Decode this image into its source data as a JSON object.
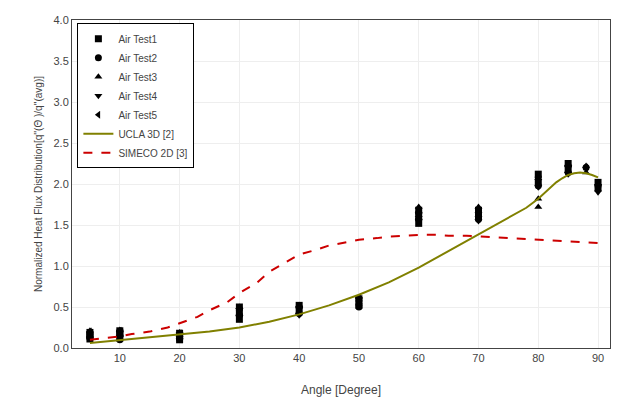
{
  "chart_data": {
    "type": "scatter",
    "xlabel": "Angle [Degree]",
    "ylabel": "Normalized Heat Flux Distribution[q''(Θ )/q''(avg)]",
    "xlim": [
      2,
      92
    ],
    "ylim": [
      0.0,
      4.0
    ],
    "xticks": [
      10,
      20,
      30,
      40,
      50,
      60,
      70,
      80,
      90
    ],
    "yticks": [
      {
        "value": 0,
        "label": "0.0"
      },
      0.5,
      {
        "value": 1,
        "label": "1.0"
      },
      1.5,
      {
        "value": 2,
        "label": "2.0"
      },
      2.5,
      {
        "value": 3,
        "label": "3.0"
      },
      3.5,
      {
        "value": 4,
        "label": "4.0"
      }
    ],
    "grid": true,
    "legend": "upper left",
    "series": [
      {
        "name": "Air Test1",
        "type": "scatter",
        "marker": "square",
        "color": "#000000",
        "x": [
          5,
          5,
          5,
          10,
          10,
          10,
          20,
          20,
          20,
          30,
          30,
          30,
          40,
          40,
          50,
          50,
          60,
          60,
          60,
          70,
          70,
          80,
          80,
          85,
          85,
          90,
          90
        ],
        "values": [
          0.19,
          0.15,
          0.11,
          0.21,
          0.17,
          0.12,
          0.18,
          0.14,
          0.1,
          0.5,
          0.42,
          0.35,
          0.52,
          0.44,
          0.6,
          0.52,
          1.68,
          1.6,
          1.52,
          1.68,
          1.6,
          2.12,
          2.02,
          2.25,
          2.18,
          2.02,
          1.95
        ]
      },
      {
        "name": "Air Test2",
        "type": "scatter",
        "marker": "circle",
        "color": "#000000",
        "x": [
          5,
          5,
          10,
          10,
          10,
          20,
          20,
          30,
          30,
          40,
          40,
          50,
          50,
          60,
          60,
          70,
          70,
          80,
          80,
          85,
          85,
          88,
          90
        ],
        "values": [
          0.17,
          0.12,
          0.2,
          0.15,
          0.1,
          0.16,
          0.11,
          0.48,
          0.4,
          0.5,
          0.42,
          0.58,
          0.5,
          1.65,
          1.57,
          1.65,
          1.57,
          2.08,
          1.98,
          2.22,
          2.14,
          2.2,
          1.98
        ]
      },
      {
        "name": "Air Test3",
        "type": "scatter",
        "marker": "triangle-up",
        "color": "#000000",
        "x": [
          5,
          5,
          10,
          10,
          20,
          20,
          30,
          30,
          40,
          40,
          50,
          50,
          60,
          60,
          70,
          70,
          80,
          80,
          85,
          85,
          88,
          88
        ],
        "values": [
          0.21,
          0.15,
          0.22,
          0.16,
          0.19,
          0.13,
          0.5,
          0.42,
          0.52,
          0.44,
          0.62,
          0.54,
          1.72,
          1.62,
          1.72,
          1.62,
          1.82,
          1.72,
          2.24,
          2.16,
          2.22,
          2.14
        ]
      },
      {
        "name": "Air Test4",
        "type": "scatter",
        "marker": "triangle-down",
        "color": "#000000",
        "x": [
          5,
          5,
          10,
          10,
          20,
          20,
          30,
          30,
          40,
          40,
          50,
          50,
          60,
          60,
          70,
          70,
          80,
          80,
          85,
          85,
          90,
          90
        ],
        "values": [
          0.18,
          0.12,
          0.2,
          0.14,
          0.17,
          0.12,
          0.46,
          0.38,
          0.48,
          0.4,
          0.6,
          0.52,
          1.63,
          1.55,
          1.63,
          1.55,
          2.04,
          1.96,
          2.2,
          2.12,
          1.98,
          1.9
        ]
      },
      {
        "name": "Air Test5",
        "type": "scatter",
        "marker": "triangle-left",
        "color": "#000000",
        "x": [
          5,
          5,
          10,
          10,
          20,
          20,
          30,
          30,
          40,
          40,
          50,
          50,
          60,
          60,
          70,
          70,
          80,
          80,
          85,
          85,
          88
        ],
        "values": [
          0.2,
          0.14,
          0.21,
          0.15,
          0.18,
          0.12,
          0.48,
          0.4,
          0.5,
          0.42,
          0.61,
          0.53,
          1.66,
          1.58,
          1.66,
          1.58,
          2.06,
          1.98,
          2.22,
          2.14,
          2.2
        ]
      },
      {
        "name": "UCLA 3D [2]",
        "type": "line",
        "line_style": "solid",
        "color": "#808000",
        "x": [
          5,
          8,
          10,
          15,
          20,
          25,
          30,
          35,
          40,
          45,
          50,
          55,
          60,
          65,
          70,
          72,
          74,
          76,
          78,
          80,
          81,
          82,
          83,
          84,
          85,
          86,
          87,
          88,
          89,
          90
        ],
        "values": [
          0.06,
          0.08,
          0.1,
          0.13,
          0.16,
          0.2,
          0.25,
          0.32,
          0.41,
          0.52,
          0.65,
          0.8,
          0.98,
          1.18,
          1.38,
          1.46,
          1.54,
          1.62,
          1.71,
          1.82,
          1.89,
          1.96,
          2.02,
          2.07,
          2.11,
          2.13,
          2.14,
          2.13,
          2.11,
          2.08
        ]
      },
      {
        "name": "SIMECO 2D [3]",
        "type": "line",
        "line_style": "dashed",
        "color": "#cc0000",
        "x": [
          5,
          8,
          10,
          12,
          15,
          18,
          20,
          23,
          25,
          28,
          30,
          33,
          35,
          38,
          40,
          43,
          45,
          48,
          50,
          53,
          55,
          58,
          60,
          63,
          65,
          68,
          70,
          73,
          75,
          78,
          80,
          83,
          85,
          88,
          90
        ],
        "values": [
          0.1,
          0.12,
          0.14,
          0.17,
          0.2,
          0.25,
          0.3,
          0.38,
          0.46,
          0.56,
          0.67,
          0.8,
          0.93,
          1.05,
          1.14,
          1.2,
          1.25,
          1.29,
          1.32,
          1.34,
          1.36,
          1.37,
          1.38,
          1.38,
          1.37,
          1.37,
          1.36,
          1.35,
          1.34,
          1.33,
          1.32,
          1.31,
          1.3,
          1.29,
          1.28
        ]
      }
    ]
  }
}
